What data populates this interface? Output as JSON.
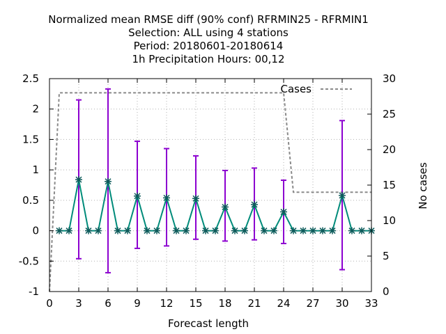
{
  "chart_data": {
    "type": "line",
    "title_lines": [
      "Normalized mean RMSE diff (90% conf) RFRMIN25 - RFRMIN1",
      "Selection: ALL using     4 stations",
      "Period: 20180601-20180614",
      "1h Precipitation   Hours:  00,12"
    ],
    "xlabel": "Forecast length",
    "ylabel": "",
    "y2label": "No cases",
    "xlim": [
      0,
      33
    ],
    "ylim": [
      -1,
      2.5
    ],
    "y2lim": [
      0,
      30
    ],
    "xticks": [
      "0",
      "3",
      "6",
      "9",
      "12",
      "15",
      "18",
      "21",
      "24",
      "27",
      "30",
      "33"
    ],
    "xtick_values": [
      0,
      3,
      6,
      9,
      12,
      15,
      18,
      21,
      24,
      27,
      30,
      33
    ],
    "yticks": [
      "-1",
      "-0.5",
      "0",
      "0.5",
      "1",
      "1.5",
      "2",
      "2.5"
    ],
    "ytick_values": [
      -1,
      -0.5,
      0,
      0.5,
      1,
      1.5,
      2,
      2.5
    ],
    "y2ticks": [
      "0",
      "5",
      "10",
      "15",
      "20",
      "25",
      "30"
    ],
    "y2tick_values": [
      0,
      5,
      10,
      15,
      20,
      25,
      30
    ],
    "grid": true,
    "legend": {
      "label": "Cases",
      "placement": "top-right"
    },
    "colors": {
      "line": "#008b7a",
      "errorbar": "#8c00d0",
      "cases": "#8a8a8a",
      "grid": "#b0b0b0"
    },
    "mean_series": {
      "x": [
        1,
        2,
        3,
        4,
        5,
        6,
        7,
        8,
        9,
        10,
        11,
        12,
        13,
        14,
        15,
        16,
        17,
        18,
        19,
        20,
        21,
        22,
        23,
        24,
        25,
        26,
        27,
        28,
        29,
        30,
        31,
        32,
        33
      ],
      "y": [
        0,
        0,
        0.84,
        0,
        0,
        0.81,
        0,
        0,
        0.57,
        0,
        0,
        0.54,
        0,
        0,
        0.53,
        0,
        0,
        0.39,
        0,
        0,
        0.43,
        0,
        0,
        0.31,
        0,
        0,
        0,
        0,
        0,
        0.58,
        0,
        0,
        0
      ]
    },
    "error_bars": [
      {
        "x": 3,
        "low": -0.46,
        "high": 2.15
      },
      {
        "x": 6,
        "low": -0.69,
        "high": 2.33
      },
      {
        "x": 9,
        "low": -0.29,
        "high": 1.47
      },
      {
        "x": 12,
        "low": -0.25,
        "high": 1.35
      },
      {
        "x": 15,
        "low": -0.14,
        "high": 1.23
      },
      {
        "x": 18,
        "low": -0.17,
        "high": 0.99
      },
      {
        "x": 21,
        "low": -0.15,
        "high": 1.03
      },
      {
        "x": 24,
        "low": -0.21,
        "high": 0.83
      },
      {
        "x": 30,
        "low": -0.64,
        "high": 1.81
      }
    ],
    "cases_series": {
      "x": [
        0,
        1,
        24,
        25,
        33
      ],
      "y": [
        0,
        28,
        28,
        14,
        14
      ]
    }
  }
}
